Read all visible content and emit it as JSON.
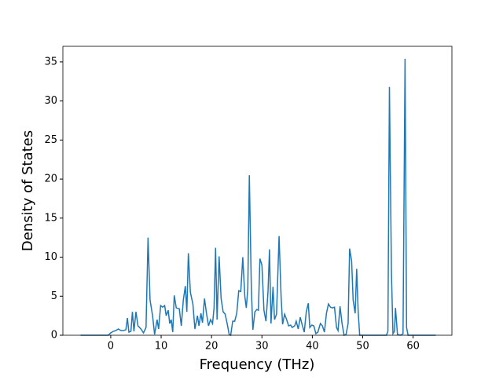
{
  "chart_data": {
    "type": "line",
    "xlabel": "Frequency (THz)",
    "ylabel": "Density of States",
    "x": [
      -6,
      -0.5,
      0,
      0.5,
      1,
      1.5,
      2,
      2.5,
      3,
      3.3,
      3.6,
      4,
      4.3,
      4.6,
      5,
      5.4,
      6,
      6.5,
      7,
      7.4,
      7.8,
      8.3,
      8.7,
      9.2,
      9.5,
      9.9,
      10.3,
      10.7,
      11,
      11.4,
      11.7,
      12,
      12.3,
      12.6,
      13,
      13.6,
      14,
      14.4,
      14.8,
      15.1,
      15.4,
      15.8,
      16.3,
      16.7,
      17.2,
      17.5,
      17.9,
      18.2,
      18.6,
      19,
      19.4,
      19.8,
      20.2,
      20.5,
      20.8,
      21.1,
      21.5,
      21.9,
      22.3,
      22.7,
      23.1,
      23.5,
      23.8,
      24.2,
      24.6,
      25,
      25.4,
      25.8,
      26.2,
      26.6,
      26.9,
      27.2,
      27.5,
      27.9,
      28.2,
      28.6,
      29,
      29.3,
      29.6,
      30,
      30.4,
      30.8,
      31.2,
      31.5,
      31.8,
      32.2,
      32.5,
      32.9,
      33.4,
      33.8,
      34.1,
      34.5,
      34.9,
      35.3,
      35.7,
      36,
      36.5,
      36.8,
      37.2,
      37.6,
      38,
      38.4,
      38.8,
      39.2,
      39.5,
      39.9,
      40.3,
      40.7,
      41.1,
      41.6,
      42,
      42.4,
      42.8,
      43.2,
      43.6,
      44,
      44.4,
      44.8,
      45.1,
      45.5,
      45.9,
      46.3,
      46.7,
      47.1,
      47.4,
      47.8,
      48.1,
      48.5,
      48.8,
      49.1,
      49.4,
      50,
      54.7,
      55,
      55.3,
      55.7,
      56,
      56.3,
      56.5,
      56.9,
      57.5,
      58,
      58.4,
      58.7,
      59,
      64.5
    ],
    "series": [
      {
        "color": "#1f77b4",
        "values": [
          0,
          0,
          0.3,
          0.5,
          0.6,
          0.8,
          0.6,
          0.6,
          0.7,
          2.2,
          0.4,
          0.5,
          3,
          0.5,
          3,
          1.2,
          0.8,
          0.3,
          1,
          12.5,
          4.5,
          2.5,
          0.1,
          2,
          0.8,
          3.8,
          3.6,
          3.8,
          2.5,
          3.2,
          1.5,
          2,
          0.4,
          5.1,
          3.5,
          3.4,
          1.2,
          4.5,
          6.3,
          3,
          10.5,
          5.5,
          4,
          0.8,
          2.5,
          1.2,
          2.8,
          1.6,
          4.7,
          2.8,
          1.2,
          2,
          1.5,
          3.5,
          11.2,
          2,
          10.1,
          4.7,
          3,
          2.7,
          1.5,
          0.1,
          0,
          1.8,
          1.8,
          2.8,
          5.7,
          5.6,
          10,
          5,
          3.5,
          6,
          20.5,
          6,
          0.7,
          3,
          3.3,
          3.2,
          9.8,
          9,
          3.2,
          1.8,
          5.5,
          11,
          1.5,
          6.2,
          2,
          2.7,
          12.7,
          5,
          1.4,
          2.7,
          2,
          1.2,
          1.3,
          1,
          1.2,
          1.8,
          0.8,
          2.3,
          1.3,
          0.4,
          3,
          4.1,
          1,
          1.3,
          1.2,
          0.2,
          0.4,
          1.5,
          1.2,
          0.4,
          2.8,
          4,
          3.6,
          3.5,
          3.6,
          1,
          0.6,
          3.7,
          1.5,
          0,
          0.1,
          1.5,
          11.1,
          9.5,
          4.5,
          2.8,
          8.5,
          3,
          0,
          0,
          0,
          0.5,
          31.8,
          8,
          0.2,
          0.5,
          3.5,
          0.1,
          0,
          0.2,
          35.4,
          1,
          0,
          0
        ]
      }
    ],
    "xlim": [
      -9.5,
      67.7
    ],
    "xticks": [
      0,
      10,
      20,
      30,
      40,
      50,
      60
    ],
    "ylim": [
      0,
      37
    ],
    "yticks": [
      0,
      5,
      10,
      15,
      20,
      25,
      30,
      35
    ]
  }
}
